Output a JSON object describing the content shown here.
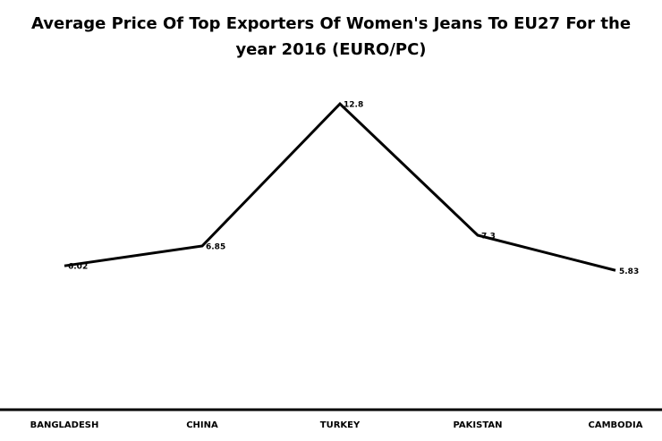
{
  "chart_data": {
    "type": "line",
    "title": "Average Price Of Top Exporters Of Women's Jeans To EU27 For the year 2016 (EURO/PC)",
    "categories": [
      "BANGLADESH",
      "CHINA",
      "TURKEY",
      "PAKISTAN",
      "CAMBODIA"
    ],
    "values": [
      6.02,
      6.85,
      12.8,
      7.3,
      5.83
    ],
    "color": "#000000",
    "ylim": [
      0,
      14
    ]
  }
}
